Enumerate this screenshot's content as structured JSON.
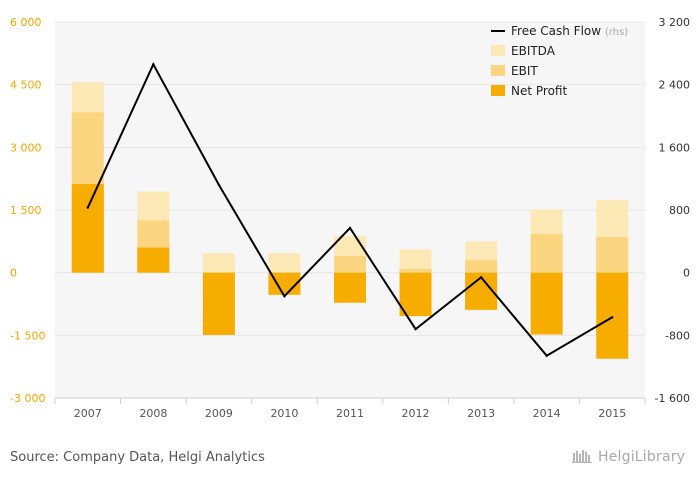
{
  "chart_data": {
    "type": "bar",
    "categories": [
      "2007",
      "2008",
      "2009",
      "2010",
      "2011",
      "2012",
      "2013",
      "2014",
      "2015"
    ],
    "series": [
      {
        "name": "EBITDA",
        "kind": "bar",
        "axis": "left",
        "color": "#fde9b6",
        "values": [
          4560,
          1940,
          470,
          470,
          880,
          560,
          750,
          1510,
          1740
        ]
      },
      {
        "name": "EBIT",
        "kind": "bar",
        "axis": "left",
        "color": "#fbd580",
        "values": [
          3840,
          1250,
          0,
          0,
          400,
          90,
          300,
          930,
          850
        ]
      },
      {
        "name": "Net Profit",
        "kind": "bar",
        "axis": "left",
        "color": "#f7ad00",
        "values": [
          2120,
          600,
          -1490,
          -530,
          -720,
          -1040,
          -890,
          -1480,
          -2060
        ]
      },
      {
        "name": "Free Cash Flow",
        "suffix": "(rhs)",
        "kind": "line",
        "axis": "right",
        "color": "#000000",
        "values": [
          830,
          2660,
          1120,
          -300,
          570,
          -720,
          -60,
          -1060,
          -570
        ]
      }
    ],
    "y_left": {
      "min": -3000,
      "max": 6000,
      "ticks": [
        -3000,
        -1500,
        0,
        1500,
        3000,
        4500,
        6000
      ],
      "tick_labels": [
        "-3 000",
        "-1 500",
        "0",
        "1 500",
        "3 000",
        "4 500",
        "6 000"
      ]
    },
    "y_right": {
      "min": -1600,
      "max": 3200,
      "ticks": [
        -1600,
        -800,
        0,
        800,
        1600,
        2400,
        3200
      ],
      "tick_labels": [
        "-1 600",
        "-800",
        "0",
        "800",
        "1 600",
        "2 400",
        "3 200"
      ]
    },
    "grid": true,
    "legend_position": "top-right",
    "colors": {
      "left_axis_text": "#f0a800",
      "right_axis_text": "#333333",
      "grid": "#e6e6e6",
      "plot_bg": "#f6f6f6"
    }
  },
  "footer": {
    "source": "Source: Company Data, Helgi Analytics",
    "logo": "HelgiLibrary"
  }
}
